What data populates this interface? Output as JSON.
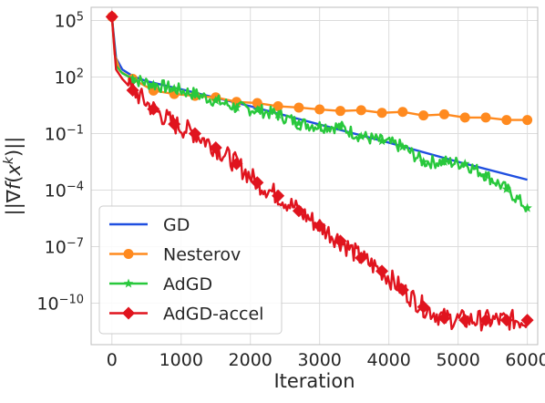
{
  "chart_data": {
    "type": "line",
    "xlabel": "Iteration",
    "ylabel": "||∇f(x^k)||",
    "y_scale": "log",
    "grid": true,
    "legend_position": "lower-left",
    "xlim": [
      -300,
      6150
    ],
    "ylim_log10": [
      -12.2,
      5.7
    ],
    "x_ticks": [
      0,
      1000,
      2000,
      3000,
      4000,
      5000,
      6000
    ],
    "y_ticks": [
      {
        "exp": -10,
        "label": "10",
        "sup": "−10"
      },
      {
        "exp": -7,
        "label": "10",
        "sup": "−7"
      },
      {
        "exp": -4,
        "label": "10",
        "sup": "−4"
      },
      {
        "exp": -1,
        "label": "10",
        "sup": "−1"
      },
      {
        "exp": 2,
        "label": "10",
        "sup": "2"
      },
      {
        "exp": 5,
        "label": "10",
        "sup": "5"
      }
    ],
    "series": [
      {
        "name": "GD",
        "color": "#1f4fe0",
        "marker": "none",
        "noise": 0,
        "points": [
          [
            0,
            5.2
          ],
          [
            60,
            3.0
          ],
          [
            150,
            2.4
          ],
          [
            300,
            2.05
          ],
          [
            500,
            1.78
          ],
          [
            1000,
            1.35
          ],
          [
            2000,
            0.45
          ],
          [
            3000,
            -0.52
          ],
          [
            4000,
            -1.48
          ],
          [
            5000,
            -2.5
          ],
          [
            6000,
            -3.45
          ]
        ]
      },
      {
        "name": "Nesterov",
        "color": "#ff8a1f",
        "marker": "circle",
        "noise": 0,
        "markers": [
          [
            0,
            5.2
          ],
          [
            300,
            1.9
          ],
          [
            600,
            1.28
          ],
          [
            900,
            1.1
          ],
          [
            1200,
            1.0
          ],
          [
            1500,
            0.92
          ],
          [
            1800,
            0.68
          ],
          [
            2100,
            0.62
          ],
          [
            2400,
            0.45
          ],
          [
            2700,
            0.38
          ],
          [
            3000,
            0.28
          ],
          [
            3300,
            0.2
          ],
          [
            3600,
            0.24
          ],
          [
            3900,
            0.1
          ],
          [
            4200,
            0.15
          ],
          [
            4500,
            -0.04
          ],
          [
            4800,
            0.02
          ],
          [
            5100,
            -0.15
          ],
          [
            5400,
            -0.15
          ],
          [
            5700,
            -0.28
          ],
          [
            6000,
            -0.28
          ]
        ],
        "points": [
          [
            0,
            5.2
          ],
          [
            40,
            3.2
          ],
          [
            120,
            2.3
          ],
          [
            300,
            1.9
          ],
          [
            600,
            1.28
          ],
          [
            900,
            1.1
          ],
          [
            1200,
            1.0
          ],
          [
            1500,
            0.92
          ],
          [
            1800,
            0.68
          ],
          [
            2100,
            0.62
          ],
          [
            2400,
            0.45
          ],
          [
            2700,
            0.38
          ],
          [
            3000,
            0.28
          ],
          [
            3300,
            0.2
          ],
          [
            3600,
            0.24
          ],
          [
            3900,
            0.1
          ],
          [
            4200,
            0.15
          ],
          [
            4500,
            -0.04
          ],
          [
            4800,
            0.02
          ],
          [
            5100,
            -0.15
          ],
          [
            5400,
            -0.15
          ],
          [
            5700,
            -0.28
          ],
          [
            6000,
            -0.28
          ]
        ]
      },
      {
        "name": "AdGD",
        "color": "#28c83c",
        "marker": "star",
        "noise": 0.35,
        "markers": [
          [
            0,
            5.2
          ],
          [
            300,
            1.9
          ],
          [
            600,
            1.6
          ],
          [
            900,
            1.38
          ],
          [
            1200,
            1.1
          ],
          [
            1500,
            0.75
          ],
          [
            1800,
            0.38
          ],
          [
            2100,
            0.25
          ],
          [
            2400,
            0.0
          ],
          [
            2700,
            -0.45
          ],
          [
            3000,
            -0.6
          ],
          [
            3300,
            -0.65
          ],
          [
            3600,
            -1.15
          ],
          [
            3900,
            -1.4
          ],
          [
            4200,
            -1.7
          ],
          [
            4500,
            -2.5
          ],
          [
            4800,
            -2.5
          ],
          [
            5100,
            -2.6
          ],
          [
            5400,
            -3.2
          ],
          [
            5700,
            -3.95
          ],
          [
            6000,
            -4.95
          ]
        ],
        "points": [
          [
            0,
            5.2
          ],
          [
            60,
            2.6
          ],
          [
            150,
            2.2
          ],
          [
            300,
            1.9
          ],
          [
            600,
            1.6
          ],
          [
            900,
            1.38
          ],
          [
            1200,
            1.1
          ],
          [
            1500,
            0.75
          ],
          [
            1800,
            0.38
          ],
          [
            2100,
            0.25
          ],
          [
            2400,
            0.0
          ],
          [
            2700,
            -0.45
          ],
          [
            3000,
            -0.6
          ],
          [
            3300,
            -0.65
          ],
          [
            3600,
            -1.15
          ],
          [
            3900,
            -1.4
          ],
          [
            4200,
            -1.7
          ],
          [
            4500,
            -2.5
          ],
          [
            4800,
            -2.5
          ],
          [
            5100,
            -2.6
          ],
          [
            5400,
            -3.2
          ],
          [
            5700,
            -3.95
          ],
          [
            6000,
            -4.95
          ]
        ]
      },
      {
        "name": "AdGD-accel",
        "color": "#e0141e",
        "marker": "diamond",
        "noise": 0.55,
        "markers": [
          [
            0,
            5.2
          ],
          [
            300,
            1.3
          ],
          [
            600,
            0.3
          ],
          [
            900,
            -0.5
          ],
          [
            1200,
            -1.0
          ],
          [
            1500,
            -1.75
          ],
          [
            1800,
            -2.6
          ],
          [
            2100,
            -3.6
          ],
          [
            2400,
            -4.3
          ],
          [
            2700,
            -5.1
          ],
          [
            3000,
            -5.9
          ],
          [
            3300,
            -6.7
          ],
          [
            3600,
            -7.6
          ],
          [
            3900,
            -8.3
          ],
          [
            4200,
            -9.3
          ],
          [
            4500,
            -10.2
          ],
          [
            4800,
            -10.8
          ],
          [
            5100,
            -10.9
          ],
          [
            5400,
            -10.9
          ],
          [
            5700,
            -10.9
          ],
          [
            6000,
            -10.9
          ]
        ],
        "points": [
          [
            0,
            5.2
          ],
          [
            60,
            2.4
          ],
          [
            150,
            1.9
          ],
          [
            300,
            1.3
          ],
          [
            600,
            0.3
          ],
          [
            900,
            -0.5
          ],
          [
            1200,
            -1.0
          ],
          [
            1500,
            -1.75
          ],
          [
            1800,
            -2.6
          ],
          [
            2100,
            -3.6
          ],
          [
            2400,
            -4.3
          ],
          [
            2700,
            -5.1
          ],
          [
            3000,
            -5.9
          ],
          [
            3300,
            -6.7
          ],
          [
            3600,
            -7.6
          ],
          [
            3900,
            -8.3
          ],
          [
            4200,
            -9.3
          ],
          [
            4500,
            -10.2
          ],
          [
            4800,
            -10.8
          ],
          [
            5100,
            -10.9
          ],
          [
            5400,
            -10.9
          ],
          [
            5700,
            -10.9
          ],
          [
            6000,
            -10.9
          ]
        ]
      }
    ]
  }
}
